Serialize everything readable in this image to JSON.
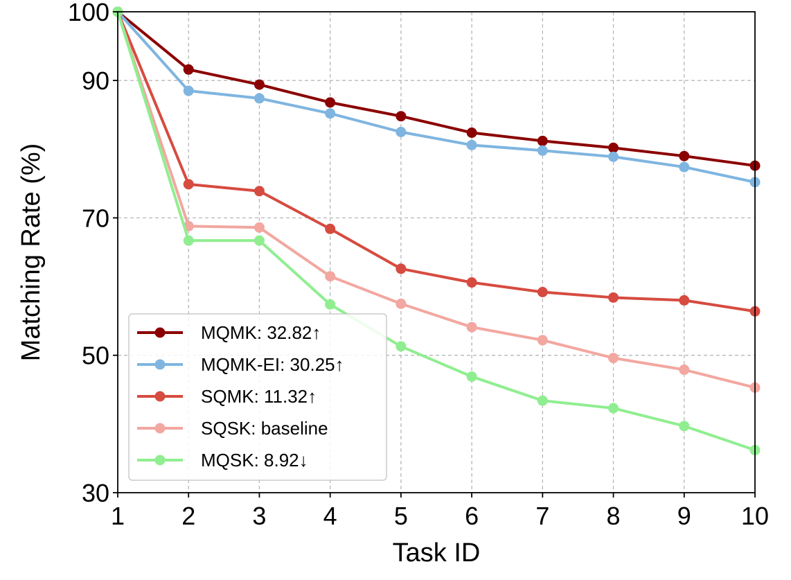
{
  "chart_data": {
    "type": "line",
    "title": "",
    "xlabel": "Task ID",
    "ylabel": "Matching Rate (%)",
    "x": [
      1,
      2,
      3,
      4,
      5,
      6,
      7,
      8,
      9,
      10
    ],
    "xlim": [
      1,
      10
    ],
    "ylim": [
      30,
      100
    ],
    "yticks": [
      30,
      50,
      70,
      90,
      100
    ],
    "grid": true,
    "legend_position": "lower-left",
    "series": [
      {
        "name": "MQMK: 32.82↑",
        "color": "#8b0000",
        "values": [
          100,
          91.6,
          89.4,
          86.8,
          84.8,
          82.4,
          81.2,
          80.2,
          79.0,
          77.6
        ]
      },
      {
        "name": "MQMK-EI: 30.25↑",
        "color": "#7fb5e0",
        "values": [
          100,
          88.5,
          87.4,
          85.2,
          82.5,
          80.6,
          79.8,
          78.9,
          77.4,
          75.2
        ]
      },
      {
        "name": "SQMK: 11.32↑",
        "color": "#d64b40",
        "values": [
          100,
          74.9,
          73.9,
          68.4,
          62.6,
          60.6,
          59.2,
          58.4,
          58.0,
          56.4
        ]
      },
      {
        "name": "SQSK: baseline",
        "color": "#f2a7a0",
        "values": [
          100,
          68.8,
          68.6,
          61.5,
          57.5,
          54.1,
          52.2,
          49.6,
          47.9,
          45.3
        ]
      },
      {
        "name": "MQSK: 8.92↓",
        "color": "#90ee90",
        "values": [
          100,
          66.7,
          66.7,
          57.4,
          51.3,
          46.9,
          43.4,
          42.3,
          39.7,
          36.2
        ]
      }
    ]
  }
}
